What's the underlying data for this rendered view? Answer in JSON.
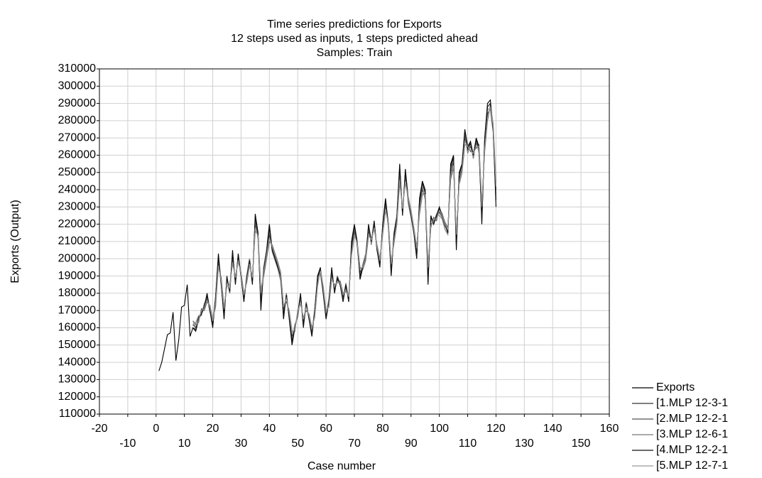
{
  "chart_data": {
    "type": "line",
    "title_lines": [
      "Time series predictions for Exports",
      "12 steps used as inputs, 1 steps predicted ahead",
      "Samples: Train"
    ],
    "x_label": "Case number",
    "y_label": "Exports (Output)",
    "xlim": [
      -20,
      160
    ],
    "xticks": [
      -20,
      -10,
      0,
      10,
      20,
      30,
      40,
      50,
      60,
      70,
      80,
      90,
      100,
      110,
      120,
      130,
      140,
      150,
      160
    ],
    "ylim": [
      110000,
      310000
    ],
    "yticks": [
      110000,
      120000,
      130000,
      140000,
      150000,
      160000,
      170000,
      180000,
      190000,
      200000,
      210000,
      220000,
      230000,
      240000,
      250000,
      260000,
      270000,
      280000,
      290000,
      300000,
      310000
    ],
    "grid": true,
    "legend": "bottom-right",
    "x": [
      1,
      2,
      3,
      4,
      5,
      6,
      7,
      8,
      9,
      10,
      11,
      12,
      13,
      14,
      15,
      16,
      17,
      18,
      19,
      20,
      21,
      22,
      23,
      24,
      25,
      26,
      27,
      28,
      29,
      30,
      31,
      32,
      33,
      34,
      35,
      36,
      37,
      38,
      39,
      40,
      41,
      42,
      43,
      44,
      45,
      46,
      47,
      48,
      49,
      50,
      51,
      52,
      53,
      54,
      55,
      56,
      57,
      58,
      59,
      60,
      61,
      62,
      63,
      64,
      65,
      66,
      67,
      68,
      69,
      70,
      71,
      72,
      73,
      74,
      75,
      76,
      77,
      78,
      79,
      80,
      81,
      82,
      83,
      84,
      85,
      86,
      87,
      88,
      89,
      90,
      91,
      92,
      93,
      94,
      95,
      96,
      97,
      98,
      99,
      100,
      101,
      102,
      103,
      104,
      105,
      106,
      107,
      108,
      109,
      110,
      111,
      112,
      113,
      114,
      115,
      116,
      117,
      118,
      119,
      120
    ],
    "series": [
      {
        "name": "Exports",
        "color": "#000000",
        "values": [
          135000,
          140000,
          148000,
          156000,
          157000,
          169000,
          141000,
          153000,
          172000,
          173000,
          185000,
          155000,
          160000,
          158000,
          165000,
          168000,
          172000,
          180000,
          170000,
          160000,
          178000,
          203000,
          185000,
          165000,
          190000,
          180000,
          205000,
          185000,
          203000,
          190000,
          175000,
          190000,
          200000,
          185000,
          226000,
          215000,
          170000,
          195000,
          205000,
          220000,
          205000,
          200000,
          195000,
          190000,
          165000,
          180000,
          165000,
          150000,
          160000,
          168000,
          180000,
          160000,
          175000,
          165000,
          155000,
          170000,
          190000,
          195000,
          180000,
          165000,
          175000,
          195000,
          180000,
          190000,
          185000,
          175000,
          185000,
          175000,
          210000,
          220000,
          210000,
          188000,
          195000,
          200000,
          220000,
          210000,
          222000,
          205000,
          195000,
          220000,
          235000,
          220000,
          190000,
          215000,
          225000,
          255000,
          225000,
          252000,
          235000,
          225000,
          215000,
          200000,
          235000,
          245000,
          240000,
          185000,
          225000,
          220000,
          225000,
          230000,
          225000,
          220000,
          215000,
          255000,
          260000,
          205000,
          250000,
          255000,
          275000,
          265000,
          268000,
          260000,
          270000,
          265000,
          220000,
          270000,
          290000,
          292000,
          275000,
          230000
        ]
      },
      {
        "name": "[1.MLP 12-3-1",
        "color": "#333333",
        "values": [
          null,
          null,
          null,
          null,
          null,
          null,
          null,
          null,
          null,
          null,
          null,
          null,
          162000,
          160000,
          166000,
          169000,
          173000,
          177000,
          171000,
          163000,
          176000,
          198000,
          186000,
          170000,
          187000,
          182000,
          200000,
          188000,
          200000,
          190000,
          178000,
          188000,
          198000,
          188000,
          220000,
          212000,
          178000,
          193000,
          203000,
          214000,
          206000,
          201000,
          196000,
          189000,
          170000,
          178000,
          167000,
          155000,
          160000,
          167000,
          177000,
          163000,
          173000,
          166000,
          158000,
          169000,
          187000,
          192000,
          181000,
          168000,
          175000,
          191000,
          182000,
          188000,
          185000,
          178000,
          184000,
          177000,
          205000,
          216000,
          208000,
          192000,
          196000,
          201000,
          216000,
          210000,
          219000,
          206000,
          198000,
          217000,
          230000,
          219000,
          195000,
          212000,
          223000,
          248000,
          228000,
          247000,
          234000,
          226000,
          216000,
          204000,
          230000,
          240000,
          236000,
          192000,
          220000,
          222000,
          224000,
          227000,
          224000,
          219000,
          216000,
          250000,
          256000,
          212000,
          246000,
          252000,
          270000,
          263000,
          265000,
          260000,
          267000,
          263000,
          228000,
          265000,
          284000,
          287000,
          275000,
          240000
        ]
      },
      {
        "name": "[2.MLP 12-2-1",
        "color": "#555555",
        "values": [
          null,
          null,
          null,
          null,
          null,
          null,
          null,
          null,
          null,
          null,
          null,
          null,
          164000,
          162000,
          163000,
          171000,
          170000,
          175000,
          173000,
          165000,
          172000,
          195000,
          189000,
          172000,
          184000,
          185000,
          197000,
          190000,
          198000,
          192000,
          180000,
          186000,
          196000,
          190000,
          216000,
          214000,
          182000,
          190000,
          200000,
          210000,
          208000,
          203000,
          198000,
          192000,
          173000,
          175000,
          170000,
          158000,
          158000,
          170000,
          174000,
          166000,
          170000,
          168000,
          160000,
          166000,
          184000,
          194000,
          184000,
          170000,
          172000,
          188000,
          185000,
          186000,
          187000,
          180000,
          181000,
          179000,
          202000,
          213000,
          210000,
          195000,
          194000,
          199000,
          213000,
          212000,
          217000,
          208000,
          200000,
          214000,
          228000,
          221000,
          198000,
          209000,
          220000,
          244000,
          230000,
          244000,
          236000,
          228000,
          218000,
          207000,
          226000,
          237000,
          238000,
          196000,
          218000,
          224000,
          222000,
          229000,
          226000,
          221000,
          218000,
          246000,
          253000,
          215000,
          243000,
          250000,
          266000,
          266000,
          262000,
          262000,
          264000,
          266000,
          232000,
          262000,
          280000,
          289000,
          278000,
          244000
        ]
      },
      {
        "name": "[3.MLP 12-6-1",
        "color": "#777777",
        "values": [
          null,
          null,
          null,
          null,
          null,
          null,
          null,
          null,
          null,
          null,
          null,
          null,
          161000,
          163000,
          167000,
          167000,
          174000,
          178000,
          169000,
          164000,
          178000,
          200000,
          184000,
          168000,
          189000,
          180000,
          202000,
          187000,
          201000,
          189000,
          177000,
          190000,
          200000,
          187000,
          222000,
          211000,
          176000,
          195000,
          205000,
          216000,
          204000,
          199000,
          194000,
          187000,
          168000,
          180000,
          166000,
          153000,
          162000,
          166000,
          178000,
          161000,
          175000,
          165000,
          157000,
          171000,
          188000,
          191000,
          180000,
          167000,
          177000,
          193000,
          181000,
          190000,
          184000,
          176000,
          186000,
          176000,
          207000,
          218000,
          207000,
          190000,
          197000,
          203000,
          218000,
          208000,
          221000,
          205000,
          197000,
          219000,
          232000,
          218000,
          193000,
          214000,
          225000,
          250000,
          226000,
          249000,
          232000,
          224000,
          215000,
          202000,
          232000,
          242000,
          234000,
          190000,
          222000,
          221000,
          226000,
          225000,
          223000,
          217000,
          214000,
          252000,
          258000,
          210000,
          248000,
          254000,
          272000,
          261000,
          267000,
          258000,
          269000,
          261000,
          225000,
          268000,
          287000,
          286000,
          273000,
          237000
        ]
      },
      {
        "name": "[4.MLP 12-2-1",
        "color": "#111111",
        "values": [
          null,
          null,
          null,
          null,
          null,
          null,
          null,
          null,
          null,
          null,
          null,
          null,
          160000,
          159000,
          165000,
          168000,
          172000,
          179000,
          170000,
          161000,
          177000,
          201000,
          185000,
          167000,
          189000,
          181000,
          203000,
          186000,
          202000,
          190000,
          176000,
          189000,
          199000,
          186000,
          224000,
          214000,
          173000,
          194000,
          204000,
          218000,
          205000,
          200000,
          195000,
          190000,
          167000,
          179000,
          166000,
          152000,
          160000,
          168000,
          179000,
          161000,
          174000,
          165000,
          156000,
          170000,
          189000,
          194000,
          180000,
          166000,
          175000,
          194000,
          181000,
          189000,
          185000,
          176000,
          185000,
          176000,
          208000,
          219000,
          209000,
          190000,
          195000,
          200000,
          219000,
          210000,
          221000,
          205000,
          196000,
          219000,
          233000,
          220000,
          192000,
          214000,
          224000,
          253000,
          226000,
          250000,
          235000,
          225000,
          215000,
          201000,
          233000,
          244000,
          238000,
          188000,
          224000,
          220000,
          225000,
          229000,
          225000,
          220000,
          215000,
          253000,
          259000,
          207000,
          249000,
          254000,
          274000,
          264000,
          267000,
          260000,
          269000,
          264000,
          223000,
          268000,
          288000,
          290000,
          275000,
          234000
        ]
      },
      {
        "name": "[5.MLP 12-7-1",
        "color": "#999999",
        "values": [
          null,
          null,
          null,
          null,
          null,
          null,
          null,
          null,
          null,
          null,
          null,
          null,
          163000,
          161000,
          164000,
          170000,
          171000,
          176000,
          172000,
          164000,
          174000,
          196000,
          187000,
          171000,
          186000,
          183000,
          198000,
          189000,
          199000,
          191000,
          179000,
          187000,
          197000,
          189000,
          218000,
          213000,
          180000,
          192000,
          202000,
          212000,
          207000,
          202000,
          197000,
          191000,
          172000,
          177000,
          169000,
          157000,
          159000,
          169000,
          175000,
          165000,
          172000,
          167000,
          159000,
          167000,
          185000,
          193000,
          183000,
          169000,
          173000,
          189000,
          184000,
          187000,
          186000,
          179000,
          182000,
          178000,
          203000,
          214000,
          209000,
          194000,
          195000,
          200000,
          214000,
          211000,
          218000,
          207000,
          199000,
          215000,
          229000,
          220000,
          197000,
          210000,
          221000,
          246000,
          229000,
          245000,
          235000,
          227000,
          217000,
          206000,
          228000,
          238000,
          237000,
          195000,
          219000,
          223000,
          223000,
          228000,
          225000,
          220000,
          217000,
          248000,
          254000,
          214000,
          244000,
          251000,
          268000,
          265000,
          263000,
          261000,
          265000,
          265000,
          230000,
          263000,
          282000,
          288000,
          277000,
          242000
        ]
      }
    ]
  }
}
